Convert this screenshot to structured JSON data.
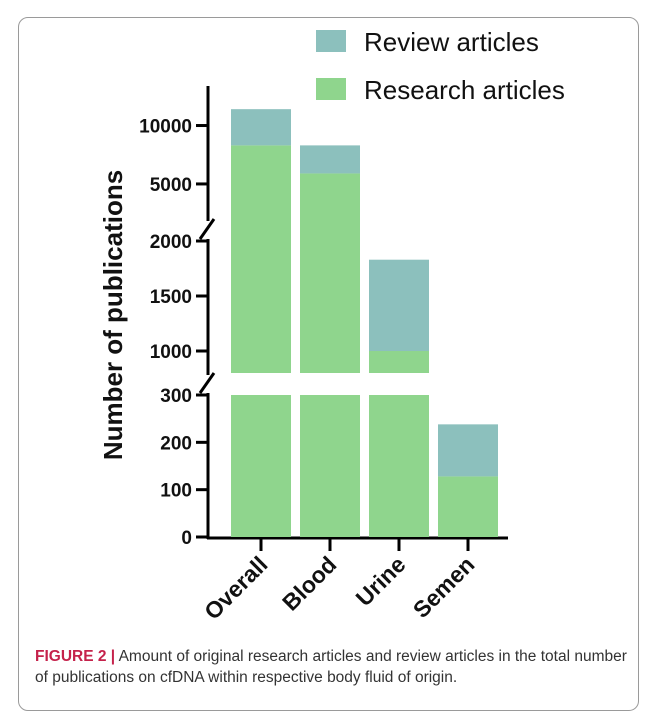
{
  "caption": {
    "label": "FIGURE 2 |",
    "text": "Amount of original research articles and review articles in the total number of publications on cfDNA within respective body fluid of origin."
  },
  "chart_data": {
    "type": "bar",
    "stacked": true,
    "broken_axis": true,
    "ylabel": "Number of publications",
    "categories": [
      "Overall",
      "Blood",
      "Urine",
      "Semen"
    ],
    "series": [
      {
        "name": "Research articles",
        "color": "#8fd58d",
        "values": [
          8300,
          5900,
          1000,
          128
        ]
      },
      {
        "name": "Review articles",
        "color": "#8cc0bd",
        "values": [
          3100,
          2400,
          830,
          110
        ]
      }
    ],
    "y_segments": [
      {
        "ylim": [
          0,
          300
        ],
        "ticks": [
          0,
          100,
          200,
          300
        ]
      },
      {
        "ylim": [
          800,
          2000
        ],
        "ticks": [
          1000,
          1500,
          2000
        ]
      },
      {
        "ylim": [
          2000,
          11500
        ],
        "ticks": [
          5000,
          10000
        ]
      }
    ],
    "legend_position": "top"
  }
}
